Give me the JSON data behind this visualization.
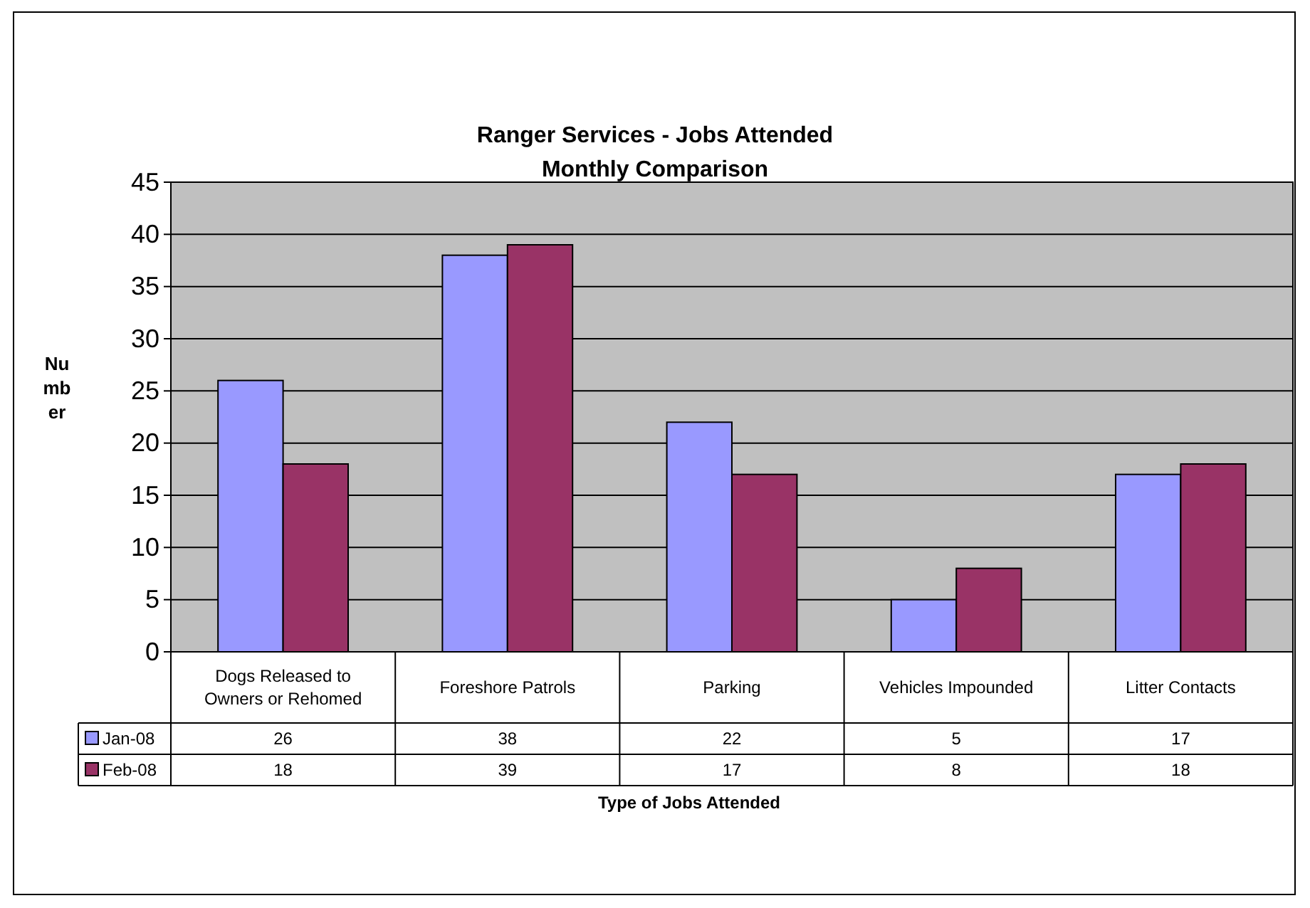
{
  "chart_data": {
    "type": "bar",
    "title": "Ranger Services - Jobs Attended",
    "subtitle": "Monthly Comparison",
    "xlabel": "Type of Jobs Attended",
    "ylabel": "Number",
    "categories": [
      "Dogs Released to Owners or Rehomed",
      "Foreshore Patrols",
      "Parking",
      "Vehicles Impounded",
      "Litter Contacts"
    ],
    "series": [
      {
        "name": "Jan-08",
        "color": "#9999ff",
        "values": [
          26,
          38,
          22,
          5,
          17
        ]
      },
      {
        "name": "Feb-08",
        "color": "#993366",
        "values": [
          18,
          39,
          17,
          8,
          18
        ]
      }
    ],
    "ylim": [
      0,
      45
    ],
    "yticks": [
      0,
      5,
      10,
      15,
      20,
      25,
      30,
      35,
      40,
      45
    ],
    "grid": "y",
    "legend": "bottom",
    "data_labels": true
  }
}
